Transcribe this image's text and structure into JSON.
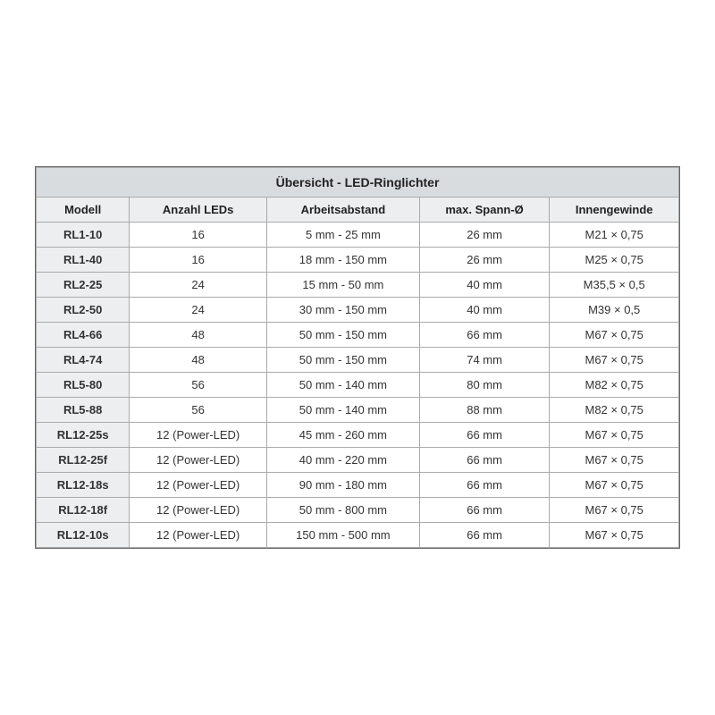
{
  "table": {
    "title": "Übersicht - LED-Ringlichter",
    "columns": [
      "Modell",
      "Anzahl LEDs",
      "Arbeitsabstand",
      "max. Spann-Ø",
      "Innengewinde"
    ],
    "rows": [
      [
        "RL1-10",
        "16",
        "5 mm - 25 mm",
        "26 mm",
        "M21 × 0,75"
      ],
      [
        "RL1-40",
        "16",
        "18 mm - 150 mm",
        "26 mm",
        "M25 × 0,75"
      ],
      [
        "RL2-25",
        "24",
        "15 mm - 50 mm",
        "40 mm",
        "M35,5 × 0,5"
      ],
      [
        "RL2-50",
        "24",
        "30 mm - 150 mm",
        "40 mm",
        "M39 × 0,5"
      ],
      [
        "RL4-66",
        "48",
        "50 mm - 150 mm",
        "66 mm",
        "M67 × 0,75"
      ],
      [
        "RL4-74",
        "48",
        "50 mm - 150 mm",
        "74 mm",
        "M67 × 0,75"
      ],
      [
        "RL5-80",
        "56",
        "50 mm - 140 mm",
        "80 mm",
        "M82 × 0,75"
      ],
      [
        "RL5-88",
        "56",
        "50 mm - 140 mm",
        "88 mm",
        "M82 × 0,75"
      ],
      [
        "RL12-25s",
        "12 (Power-LED)",
        "45 mm - 260 mm",
        "66 mm",
        "M67 × 0,75"
      ],
      [
        "RL12-25f",
        "12 (Power-LED)",
        "40 mm - 220 mm",
        "66 mm",
        "M67 × 0,75"
      ],
      [
        "RL12-18s",
        "12 (Power-LED)",
        "90 mm - 180 mm",
        "66 mm",
        "M67 × 0,75"
      ],
      [
        "RL12-18f",
        "12 (Power-LED)",
        "50 mm - 800 mm",
        "66 mm",
        "M67 × 0,75"
      ],
      [
        "RL12-10s",
        "12 (Power-LED)",
        "150 mm - 500 mm",
        "66 mm",
        "M67 × 0,75"
      ]
    ],
    "style": {
      "title_bg": "#d9dcdf",
      "header_bg": "#eceeef",
      "model_col_bg": "#eceeef",
      "cell_bg": "#ffffff",
      "border_color": "#aaaaaa",
      "outer_border_color": "#666666",
      "text_color": "#333333",
      "title_fontsize": 14,
      "header_fontsize": 13,
      "cell_fontsize": 13,
      "font_family": "Arial"
    }
  }
}
